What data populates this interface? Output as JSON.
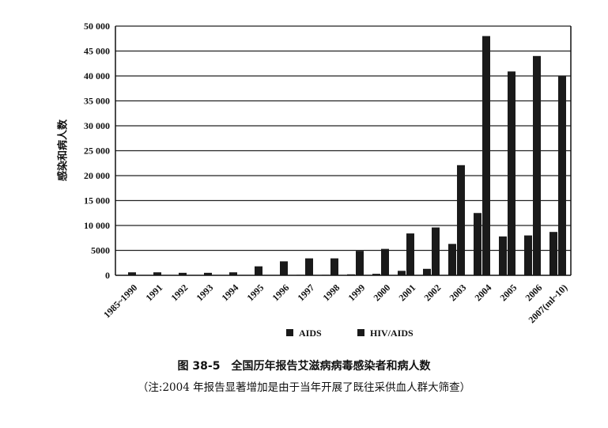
{
  "chart_data": {
    "type": "bar",
    "ylabel": "感染和病人数",
    "ylim": [
      0,
      50000
    ],
    "yticks": [
      0,
      5000,
      10000,
      15000,
      20000,
      25000,
      30000,
      35000,
      40000,
      45000,
      50000
    ],
    "ytick_labels": [
      "0",
      "5000",
      "10 000",
      "15 000",
      "20 000",
      "25 000",
      "30 000",
      "35 000",
      "40 000",
      "45 000",
      "50 000"
    ],
    "categories": [
      "1985~1990",
      "1991",
      "1992",
      "1993",
      "1994",
      "1995",
      "1996",
      "1997",
      "1998",
      "1999",
      "2000",
      "2001",
      "2002",
      "2003",
      "2004",
      "2005",
      "2006",
      "2007(ml~10)"
    ],
    "grid": true,
    "legend_position": "bottom-center",
    "series": [
      {
        "name": "AIDS",
        "color": "#1a1a1a",
        "values": [
          0,
          0,
          0,
          0,
          0,
          0,
          50,
          100,
          100,
          200,
          300,
          900,
          1300,
          6300,
          12500,
          7800,
          8000,
          8700
        ]
      },
      {
        "name": "HIV/AIDS",
        "color": "#1a1a1a",
        "values": [
          600,
          600,
          500,
          500,
          600,
          1800,
          2800,
          3400,
          3400,
          4900,
          5300,
          8400,
          9600,
          22100,
          48000,
          40900,
          44000,
          40000
        ]
      }
    ]
  },
  "caption": {
    "title": "图 38-5　全国历年报告艾滋病病毒感染者和病人数",
    "note": "（注:2004 年报告显著增加是由于当年开展了既往采供血人群大筛查）"
  }
}
